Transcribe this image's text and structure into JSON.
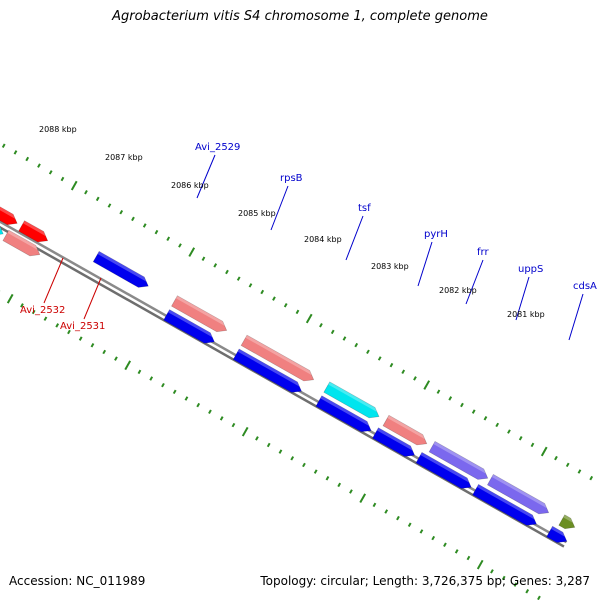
{
  "title": "Agrobacterium vitis S4 chromosome 1, complete genome",
  "footer": {
    "accession": "Accession: NC_011989",
    "stats": "Topology: circular; Length: 3,726,375 bp; Genes: 3,287"
  },
  "colors": {
    "backbone": "#8a8a8a",
    "tick": "#2e8b22",
    "label_blue": "#0000cc",
    "label_red": "#cc0000",
    "gene_blue": "#0000ee",
    "gene_red": "#ff0000",
    "gene_pink": "#f08080",
    "gene_cyan": "#00e5ee",
    "gene_purple": "#7b68ee",
    "gene_gray": "#666666",
    "gene_olive": "#6b8e23"
  },
  "kbp_labels": [
    "2088 kbp",
    "2087 kbp",
    "2086 kbp",
    "2085 kbp",
    "2084 kbp",
    "2083 kbp",
    "2082 kbp",
    "2081 kbp"
  ],
  "gene_labels": [
    {
      "name": "Avi_2529",
      "color": "label_blue"
    },
    {
      "name": "rpsB",
      "color": "label_blue"
    },
    {
      "name": "tsf",
      "color": "label_blue"
    },
    {
      "name": "pyrH",
      "color": "label_blue"
    },
    {
      "name": "frr",
      "color": "label_blue"
    },
    {
      "name": "uppS",
      "color": "label_blue"
    },
    {
      "name": "cdsA",
      "color": "label_blue"
    },
    {
      "name": "Avi_2532",
      "color": "label_red"
    },
    {
      "name": "Avi_2531",
      "color": "label_red"
    }
  ]
}
